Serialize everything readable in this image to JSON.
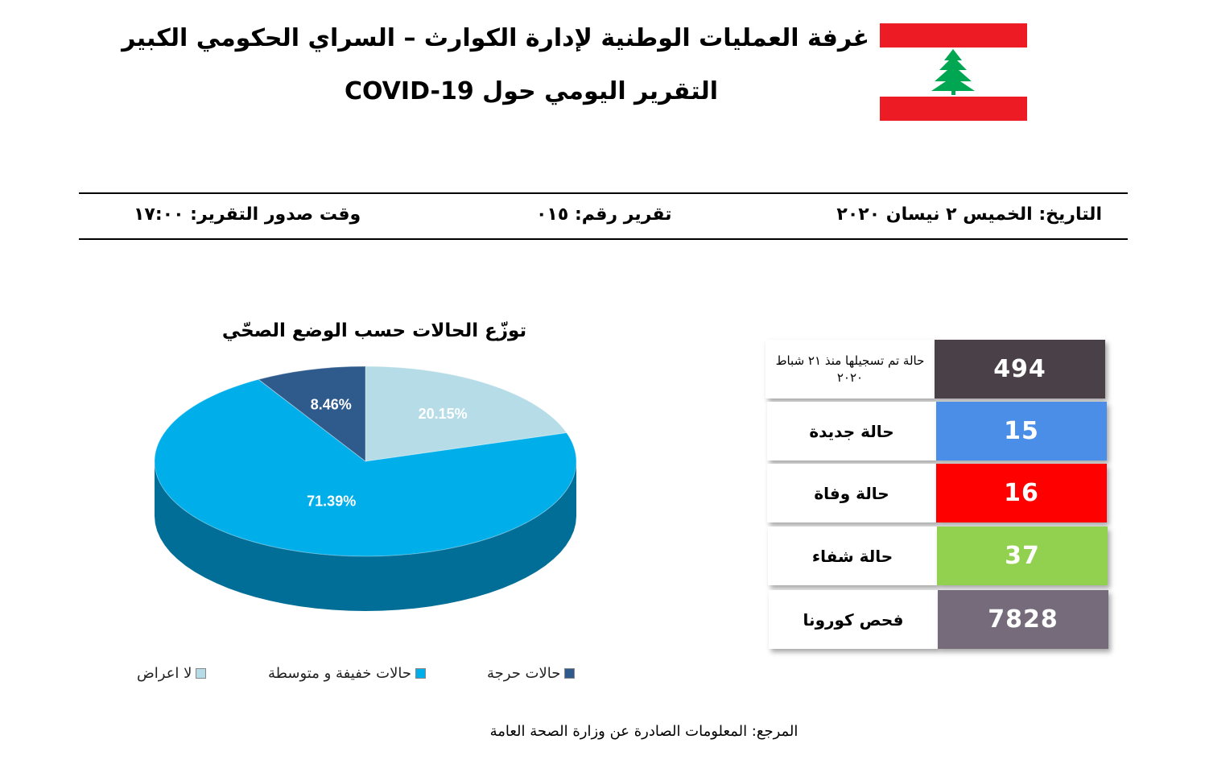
{
  "header": {
    "title_line1": "غرفة العمليات الوطنية لإدارة الكوارث – السراي الحكومي الكبير",
    "title_line2": "التقرير اليومي حول COVID-19"
  },
  "flag": {
    "colors": {
      "red": "#ed1c24",
      "white": "#ffffff",
      "cedar": "#00a651"
    },
    "icon": "lebanon-flag-icon"
  },
  "report_meta": {
    "date": "التاريخ: الخميس ٢ نيسان ٢٠٢٠",
    "report_number": "تقرير رقم: ٠١٥",
    "issue_time": "وقت صدور التقرير: ١٧:٠٠"
  },
  "stats": [
    {
      "label": "حالة تم تسجيلها منذ ٢١ شباط ٢٠٢٠",
      "value": "494",
      "color": "#4a4048"
    },
    {
      "label": "حالة جديدة",
      "value": "15",
      "color": "#4a8ee8"
    },
    {
      "label": "حالة وفاة",
      "value": "16",
      "color": "#ff0000"
    },
    {
      "label": "حالة شفاء",
      "value": "37",
      "color": "#92d050"
    },
    {
      "label": "فحص كورونا",
      "value": "7828",
      "color": "#756b7a"
    }
  ],
  "chart_data": {
    "type": "pie",
    "title": "توزّع الحالات حسب الوضع الصحّي",
    "slices": [
      {
        "label": "لا اعراض",
        "value": 20.15,
        "display": "20.15%",
        "color": "#b6dce8",
        "side": "#8fb8c6"
      },
      {
        "label": "حالات خفيفة و متوسطة",
        "value": 71.39,
        "display": "71.39%",
        "color": "#00aeea",
        "side": "#006e96"
      },
      {
        "label": "حالات حرجة",
        "value": 8.46,
        "display": "8.46%",
        "color": "#2e5a8c",
        "side": "#1d3b5e"
      }
    ],
    "legend_order": [
      "حالات حرجة",
      "حالات خفيفة و متوسطة",
      "لا اعراض"
    ]
  },
  "footer": {
    "source": "المرجع: المعلومات الصادرة عن وزارة الصحة العامة"
  }
}
